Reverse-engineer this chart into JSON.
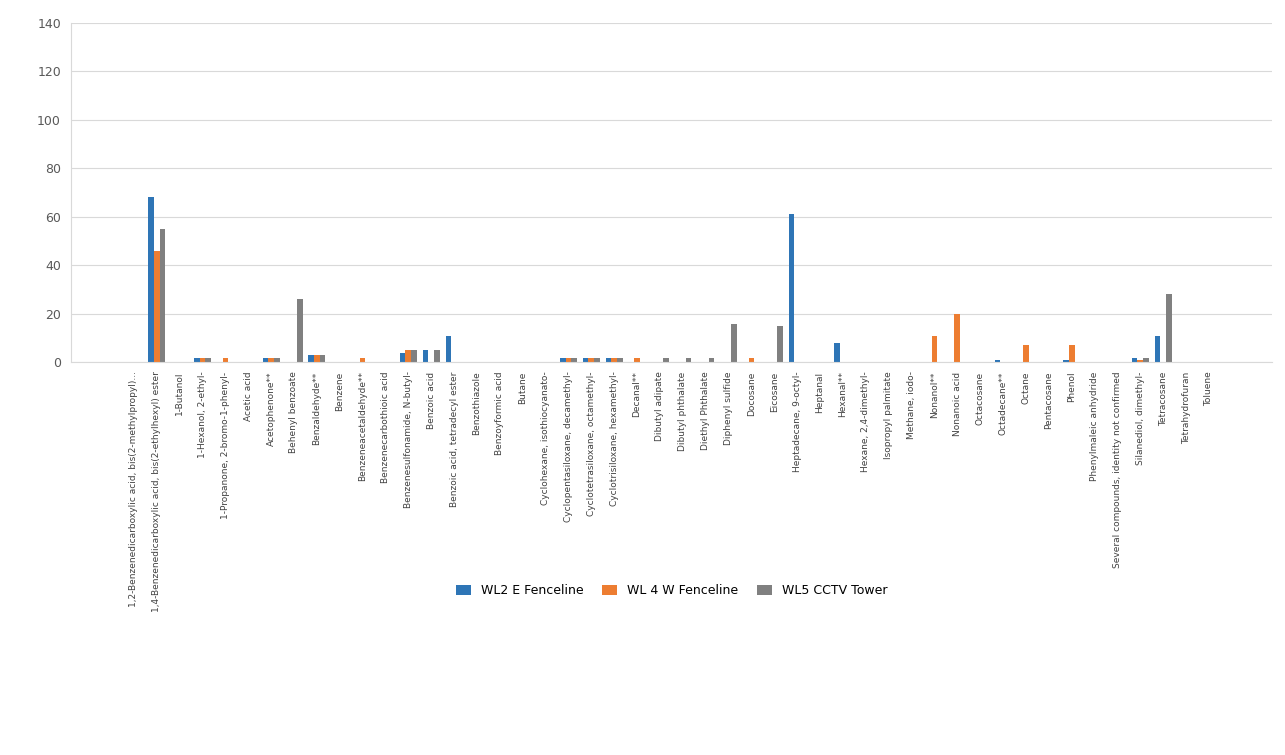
{
  "categories": [
    "1,2-Benzenedicarboxylic acid, bis(2-methylpropyl)...",
    "1,4-Benzenedicarboxylic acid, bis(2-ethylhexyl) ester",
    "1-Butanol",
    "1-Hexanol, 2-ethyl-",
    "1-Propanone, 2-bromo-1-phenyl-",
    "Acetic acid",
    "Acetophenone**",
    "Behenyl benzoate",
    "Benzaldehyde**",
    "Benzene",
    "Benzeneacetaldehyde**",
    "Benzenecarbothioic acid",
    "Benzenesulfonamide, N-butyl-",
    "Benzoic acid",
    "Benzoic acid, tetradecyl ester",
    "Benzothiazole",
    "Benzoyformic acid",
    "Butane",
    "Cyclohexane, isothiocyanato-",
    "Cyclopentasiloxane, decamethyl-",
    "Cyclotetrasiloxane, octamethyl-",
    "Cyclotrisiloxane, hexamethyl-",
    "Decanal**",
    "Dibutyl adipate",
    "Dibutyl phthalate",
    "Diethyl Phthalate",
    "Diphenyl sulfide",
    "Docosane",
    "Eicosane",
    "Heptadecane, 9-octyl-",
    "Heptanal",
    "Hexanal**",
    "Hexane, 2,4-dimethyl-",
    "Isopropyl palmitate",
    "Methane, iodo-",
    "Nonanol**",
    "Nonanoic acid",
    "Octacosane",
    "Octadecane**",
    "Octane",
    "Pentacosane",
    "Phenol",
    "Phenylmaleic anhydride",
    "Several compounds, identity not confirmed",
    "Silanediol, dimethyl-",
    "Tetracosane",
    "Tetrahydrofuran",
    "Toluene"
  ],
  "wl2": [
    0,
    68,
    0,
    2,
    0,
    0,
    2,
    0,
    3,
    0,
    0,
    0,
    4,
    5,
    11,
    0,
    0,
    0,
    0,
    2,
    2,
    2,
    0,
    0,
    0,
    0,
    0,
    0,
    0,
    61,
    0,
    8,
    0,
    0,
    0,
    0,
    0,
    0,
    1,
    0,
    0,
    1,
    0,
    0,
    2,
    11,
    0,
    0
  ],
  "wl4": [
    0,
    46,
    0,
    2,
    2,
    0,
    2,
    0,
    3,
    0,
    2,
    0,
    5,
    0,
    0,
    0,
    0,
    0,
    0,
    2,
    2,
    2,
    2,
    0,
    0,
    0,
    0,
    2,
    0,
    0,
    0,
    0,
    0,
    0,
    0,
    11,
    20,
    0,
    0,
    7,
    0,
    7,
    0,
    0,
    1,
    0,
    0,
    0
  ],
  "wl5": [
    0,
    55,
    0,
    2,
    0,
    0,
    2,
    26,
    3,
    0,
    0,
    0,
    5,
    5,
    0,
    0,
    0,
    0,
    0,
    2,
    2,
    2,
    0,
    2,
    2,
    2,
    16,
    0,
    15,
    0,
    0,
    0,
    0,
    0,
    0,
    0,
    0,
    0,
    0,
    0,
    0,
    0,
    0,
    0,
    2,
    28,
    0,
    0
  ],
  "colors": {
    "wl2": "#2e75b6",
    "wl4": "#ed7d31",
    "wl5": "#808080"
  },
  "ylim": [
    0,
    140
  ],
  "yticks": [
    0,
    20,
    40,
    60,
    80,
    100,
    120,
    140
  ],
  "legend_labels": [
    "WL2 E Fenceline",
    "WL 4 W Fenceline",
    "WL5 CCTV Tower"
  ],
  "bar_width": 0.25,
  "grid_color": "#d9d9d9",
  "tick_label_fontsize": 6.5,
  "ylabel_fontsize": 9,
  "legend_fontsize": 9
}
